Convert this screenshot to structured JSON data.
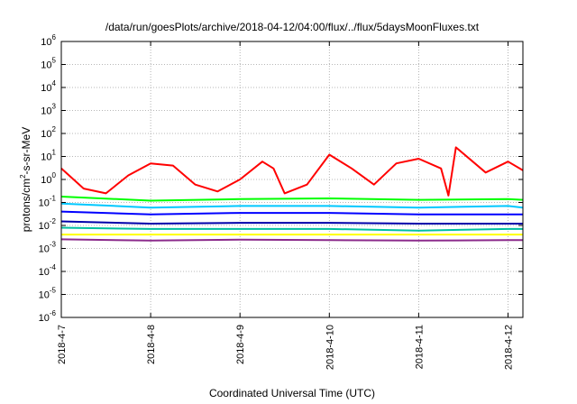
{
  "chart_data": {
    "type": "line",
    "title": "/data/run/goesPlots/archive/2018-04-12/04:00/flux/../flux/5daysMoonFluxes.txt",
    "xlabel": "Coordinated Universal Time (UTC)",
    "ylabel": {
      "base": "protons/cm",
      "sup": "2",
      "rest": "-s-sr-MeV"
    },
    "y_scale": "log",
    "ylim": [
      1e-06,
      1000000.0
    ],
    "y_ticks": [
      {
        "value": 1e-06,
        "base": "10",
        "exp": "-6"
      },
      {
        "value": 1e-05,
        "base": "10",
        "exp": "-5"
      },
      {
        "value": 0.0001,
        "base": "10",
        "exp": "-4"
      },
      {
        "value": 0.001,
        "base": "10",
        "exp": "-3"
      },
      {
        "value": 0.01,
        "base": "10",
        "exp": "-2"
      },
      {
        "value": 0.1,
        "base": "10",
        "exp": "-1"
      },
      {
        "value": 1,
        "base": "10",
        "exp": "0"
      },
      {
        "value": 10,
        "base": "10",
        "exp": "1"
      },
      {
        "value": 100,
        "base": "10",
        "exp": "2"
      },
      {
        "value": 1000,
        "base": "10",
        "exp": "3"
      },
      {
        "value": 10000,
        "base": "10",
        "exp": "4"
      },
      {
        "value": 100000,
        "base": "10",
        "exp": "5"
      },
      {
        "value": 1000000,
        "base": "10",
        "exp": "6"
      }
    ],
    "xlim": [
      "2018-04-07 00:00",
      "2018-04-12 04:00"
    ],
    "x_ticks": [
      "2018-4-7",
      "2018-4-8",
      "2018-4-9",
      "2018-4-10",
      "2018-4-11",
      "2018-4-12"
    ],
    "grid": true,
    "series": [
      {
        "color": "#ff0000",
        "t": [
          "2018-04-07 00:00",
          "2018-04-07 06:00",
          "2018-04-07 12:00",
          "2018-04-07 18:00",
          "2018-04-08 00:00",
          "2018-04-08 06:00",
          "2018-04-08 12:00",
          "2018-04-08 18:00",
          "2018-04-09 00:00",
          "2018-04-09 06:00",
          "2018-04-09 09:00",
          "2018-04-09 12:00",
          "2018-04-09 18:00",
          "2018-04-10 00:00",
          "2018-04-10 06:00",
          "2018-04-10 12:00",
          "2018-04-10 18:00",
          "2018-04-11 00:00",
          "2018-04-11 06:00",
          "2018-04-11 08:00",
          "2018-04-11 10:00",
          "2018-04-11 18:00",
          "2018-04-12 00:00",
          "2018-04-12 04:00"
        ],
        "y": [
          3,
          0.4,
          0.25,
          1.5,
          5,
          4,
          0.6,
          0.3,
          1,
          6,
          3,
          0.25,
          0.6,
          12,
          3,
          0.6,
          5,
          8,
          3,
          0.2,
          25,
          2,
          6,
          2.5
        ]
      },
      {
        "color": "#00ff00",
        "t": [
          "2018-04-07 00:00",
          "2018-04-08 00:00",
          "2018-04-09 00:00",
          "2018-04-10 00:00",
          "2018-04-11 00:00",
          "2018-04-12 00:00",
          "2018-04-12 04:00"
        ],
        "y": [
          0.18,
          0.12,
          0.14,
          0.15,
          0.13,
          0.14,
          0.13
        ]
      },
      {
        "color": "#00c8ff",
        "t": [
          "2018-04-07 00:00",
          "2018-04-08 00:00",
          "2018-04-09 00:00",
          "2018-04-10 00:00",
          "2018-04-11 00:00",
          "2018-04-12 00:00",
          "2018-04-12 04:00"
        ],
        "y": [
          0.09,
          0.06,
          0.07,
          0.07,
          0.06,
          0.07,
          0.06
        ]
      },
      {
        "color": "#0000ff",
        "t": [
          "2018-04-07 00:00",
          "2018-04-08 00:00",
          "2018-04-09 00:00",
          "2018-04-10 00:00",
          "2018-04-11 00:00",
          "2018-04-12 00:00",
          "2018-04-12 04:00"
        ],
        "y": [
          0.04,
          0.03,
          0.035,
          0.035,
          0.03,
          0.03,
          0.03
        ]
      },
      {
        "color": "#0000aa",
        "t": [
          "2018-04-07 00:00",
          "2018-04-08 00:00",
          "2018-04-09 00:00",
          "2018-04-10 00:00",
          "2018-04-11 00:00",
          "2018-04-12 00:00",
          "2018-04-12 04:00"
        ],
        "y": [
          0.015,
          0.012,
          0.013,
          0.013,
          0.012,
          0.012,
          0.012
        ]
      },
      {
        "color": "#00bfa0",
        "t": [
          "2018-04-07 00:00",
          "2018-04-08 00:00",
          "2018-04-09 00:00",
          "2018-04-10 00:00",
          "2018-04-11 00:00",
          "2018-04-12 00:00",
          "2018-04-12 04:00"
        ],
        "y": [
          0.008,
          0.007,
          0.007,
          0.007,
          0.006,
          0.007,
          0.007
        ]
      },
      {
        "color": "#ffff00",
        "t": [
          "2018-04-07 00:00",
          "2018-04-08 00:00",
          "2018-04-09 00:00",
          "2018-04-10 00:00",
          "2018-04-11 00:00",
          "2018-04-12 00:00",
          "2018-04-12 04:00"
        ],
        "y": [
          0.004,
          0.004,
          0.004,
          0.004,
          0.004,
          0.004,
          0.004
        ]
      },
      {
        "color": "#8b2a8b",
        "t": [
          "2018-04-07 00:00",
          "2018-04-08 00:00",
          "2018-04-09 00:00",
          "2018-04-10 00:00",
          "2018-04-11 00:00",
          "2018-04-12 00:00",
          "2018-04-12 04:00"
        ],
        "y": [
          0.0025,
          0.0022,
          0.0024,
          0.0023,
          0.0022,
          0.0023,
          0.0023
        ]
      }
    ]
  }
}
